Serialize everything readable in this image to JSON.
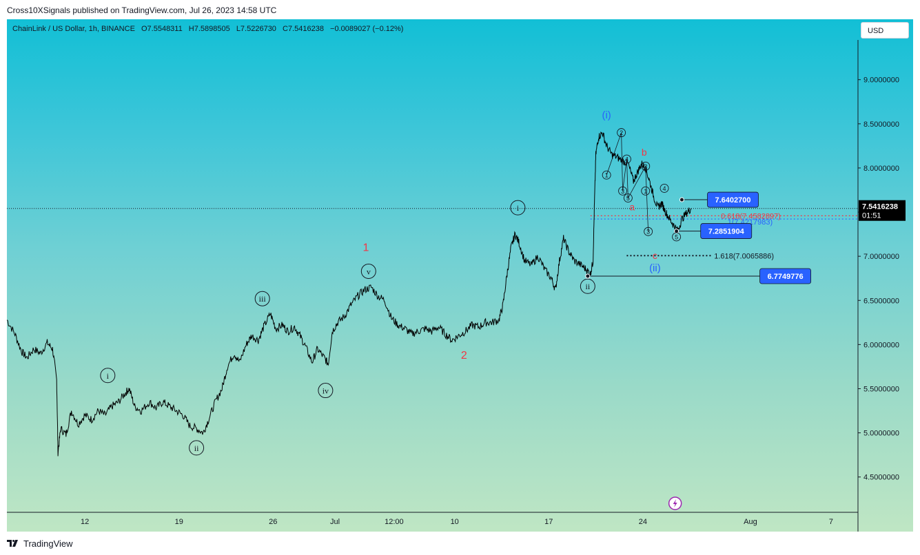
{
  "header": {
    "publisher_line": "Cross10XSignals published on TradingView.com, Jul 26, 2023 14:58 UTC"
  },
  "symbol_info": {
    "name": "ChainLink / US Dollar, 1h, BINANCE",
    "open": "O7.5548311",
    "high": "H7.5898505",
    "low": "L7.5226730",
    "close": "C7.5416238",
    "change": "−0.0089027 (−0.12%)"
  },
  "currency_button": "USD",
  "footer": {
    "brand": "TradingView"
  },
  "colors": {
    "price_line": "#000000",
    "price_label_bg": "#000000",
    "label_box": "#2962ff",
    "wave_red": "#f23645",
    "wave_blue": "#2962ff",
    "fib_red": "#f23645"
  },
  "chart_data": {
    "type": "line",
    "ylim": [
      4.1,
      9.45
    ],
    "y_ticks": [
      {
        "value": 9.0,
        "label": "9.0000000"
      },
      {
        "value": 8.5,
        "label": "8.5000000"
      },
      {
        "value": 8.0,
        "label": "8.0000000"
      },
      {
        "value": 7.5,
        "label": "7.5000000"
      },
      {
        "value": 7.0,
        "label": "7.0000000"
      },
      {
        "value": 6.5,
        "label": "6.5000000"
      },
      {
        "value": 6.0,
        "label": "6.0000000"
      },
      {
        "value": 5.5,
        "label": "5.5000000"
      },
      {
        "value": 5.0,
        "label": "5.0000000"
      },
      {
        "value": 4.5,
        "label": "4.5000000"
      }
    ],
    "x_ticks": [
      {
        "t": 2.0,
        "label": "12"
      },
      {
        "t": 9.0,
        "label": "19"
      },
      {
        "t": 16.0,
        "label": "26"
      },
      {
        "t": 20.6,
        "label": "Jul"
      },
      {
        "t": 25.0,
        "label": "12:00"
      },
      {
        "t": 29.5,
        "label": "10"
      },
      {
        "t": 36.5,
        "label": "17"
      },
      {
        "t": 43.5,
        "label": "24"
      },
      {
        "t": 51.5,
        "label": "Aug"
      },
      {
        "t": 57.5,
        "label": "7"
      }
    ],
    "xlim": [
      -3.8,
      59.5
    ],
    "last_price": {
      "value": 7.5416238,
      "label": "7.5416238",
      "countdown": "01:51"
    },
    "series": [
      {
        "points": [
          [
            -3.8,
            6.28
          ],
          [
            -3.2,
            6.12
          ],
          [
            -2.7,
            5.92
          ],
          [
            -2.3,
            5.85
          ],
          [
            -1.8,
            5.95
          ],
          [
            -1.3,
            5.9
          ],
          [
            -0.8,
            6.02
          ],
          [
            -0.4,
            5.95
          ],
          [
            -0.1,
            5.6
          ],
          [
            0.0,
            4.78
          ],
          [
            0.2,
            5.05
          ],
          [
            0.6,
            4.98
          ],
          [
            1.0,
            5.25
          ],
          [
            1.5,
            5.1
          ],
          [
            2.0,
            5.2
          ],
          [
            2.5,
            5.15
          ],
          [
            3.0,
            5.25
          ],
          [
            3.5,
            5.2
          ],
          [
            4.0,
            5.3
          ],
          [
            4.5,
            5.35
          ],
          [
            5.0,
            5.45
          ],
          [
            5.3,
            5.5
          ],
          [
            5.7,
            5.3
          ],
          [
            6.2,
            5.25
          ],
          [
            6.8,
            5.35
          ],
          [
            7.3,
            5.28
          ],
          [
            7.8,
            5.35
          ],
          [
            8.3,
            5.3
          ],
          [
            8.8,
            5.25
          ],
          [
            9.3,
            5.2
          ],
          [
            9.8,
            5.08
          ],
          [
            10.3,
            5.05
          ],
          [
            10.8,
            5.0
          ],
          [
            11.2,
            5.15
          ],
          [
            11.7,
            5.35
          ],
          [
            12.2,
            5.5
          ],
          [
            12.6,
            5.75
          ],
          [
            13.1,
            5.9
          ],
          [
            13.5,
            5.8
          ],
          [
            14.0,
            6.0
          ],
          [
            14.4,
            6.1
          ],
          [
            14.9,
            6.05
          ],
          [
            15.3,
            6.2
          ],
          [
            15.8,
            6.35
          ],
          [
            16.2,
            6.18
          ],
          [
            16.7,
            6.22
          ],
          [
            17.1,
            6.15
          ],
          [
            17.6,
            6.2
          ],
          [
            18.0,
            6.1
          ],
          [
            18.4,
            5.98
          ],
          [
            18.9,
            5.8
          ],
          [
            19.3,
            5.95
          ],
          [
            19.8,
            5.85
          ],
          [
            20.1,
            5.78
          ],
          [
            20.4,
            6.15
          ],
          [
            20.8,
            6.25
          ],
          [
            21.3,
            6.32
          ],
          [
            21.8,
            6.45
          ],
          [
            22.3,
            6.55
          ],
          [
            22.8,
            6.62
          ],
          [
            23.3,
            6.65
          ],
          [
            23.8,
            6.55
          ],
          [
            24.3,
            6.5
          ],
          [
            24.8,
            6.3
          ],
          [
            25.3,
            6.22
          ],
          [
            25.8,
            6.18
          ],
          [
            26.3,
            6.12
          ],
          [
            26.8,
            6.15
          ],
          [
            27.3,
            6.18
          ],
          [
            27.8,
            6.15
          ],
          [
            28.3,
            6.2
          ],
          [
            28.8,
            6.12
          ],
          [
            29.3,
            6.05
          ],
          [
            29.8,
            6.1
          ],
          [
            30.3,
            6.15
          ],
          [
            30.8,
            6.22
          ],
          [
            31.3,
            6.2
          ],
          [
            31.8,
            6.25
          ],
          [
            32.3,
            6.25
          ],
          [
            32.8,
            6.28
          ],
          [
            33.1,
            6.45
          ],
          [
            33.4,
            6.8
          ],
          [
            33.7,
            7.1
          ],
          [
            34.0,
            7.25
          ],
          [
            34.3,
            7.15
          ],
          [
            34.7,
            6.95
          ],
          [
            35.2,
            6.9
          ],
          [
            35.7,
            7.0
          ],
          [
            36.2,
            6.85
          ],
          [
            36.7,
            6.75
          ],
          [
            37.0,
            6.62
          ],
          [
            37.3,
            6.95
          ],
          [
            37.6,
            7.2
          ],
          [
            38.0,
            7.05
          ],
          [
            38.4,
            6.95
          ],
          [
            38.9,
            6.9
          ],
          [
            39.3,
            6.85
          ],
          [
            39.6,
            6.8
          ],
          [
            39.8,
            6.95
          ],
          [
            39.9,
            7.6
          ],
          [
            40.0,
            8.15
          ],
          [
            40.2,
            8.35
          ],
          [
            40.5,
            8.4
          ],
          [
            40.8,
            8.25
          ],
          [
            41.2,
            8.15
          ],
          [
            41.6,
            8.12
          ],
          [
            42.0,
            8.08
          ],
          [
            42.4,
            8.05
          ],
          [
            42.8,
            7.85
          ],
          [
            43.1,
            7.95
          ],
          [
            43.4,
            8.05
          ],
          [
            43.7,
            8.0
          ],
          [
            44.0,
            7.85
          ],
          [
            44.3,
            7.68
          ],
          [
            44.6,
            7.55
          ],
          [
            44.9,
            7.6
          ],
          [
            45.2,
            7.5
          ],
          [
            45.5,
            7.42
          ],
          [
            45.8,
            7.35
          ],
          [
            46.1,
            7.29
          ],
          [
            46.4,
            7.42
          ],
          [
            46.8,
            7.5
          ],
          [
            47.1,
            7.54
          ]
        ]
      }
    ],
    "price_labels": [
      {
        "value": 7.64027,
        "label": "7.6402700",
        "t": 46.4
      },
      {
        "value": 7.2851904,
        "label": "7.2851904",
        "t": 46.0
      },
      {
        "value": 6.7749776,
        "label": "6.7749776",
        "t": 48.6
      }
    ],
    "fib_levels": [
      {
        "value": 7.4582897,
        "label": "0.618(7.4582897)",
        "color": "#f23645"
      },
      {
        "value": 7.4217983,
        "label": "1(7.4217983)",
        "color": "#2962ff"
      },
      {
        "value": 7.0065886,
        "label": "1.618(7.0065886)",
        "color": "#131722"
      }
    ],
    "wave_labels": [
      {
        "text": "i",
        "t": 3.7,
        "v": 5.65,
        "style": "circle"
      },
      {
        "text": "ii",
        "t": 10.3,
        "v": 4.83,
        "style": "circle"
      },
      {
        "text": "iii",
        "t": 15.2,
        "v": 6.52,
        "style": "circle"
      },
      {
        "text": "iv",
        "t": 19.9,
        "v": 5.48,
        "style": "circle"
      },
      {
        "text": "v",
        "t": 23.1,
        "v": 6.83,
        "style": "circle"
      },
      {
        "text": "i",
        "t": 34.2,
        "v": 7.55,
        "style": "circle"
      },
      {
        "text": "ii",
        "t": 39.4,
        "v": 6.66,
        "style": "circle"
      },
      {
        "text": "1",
        "t": 22.9,
        "v": 7.1,
        "style": "red"
      },
      {
        "text": "2",
        "t": 30.2,
        "v": 5.88,
        "style": "red"
      },
      {
        "text": "(i)",
        "t": 40.8,
        "v": 8.6,
        "style": "blue"
      },
      {
        "text": "(ii)",
        "t": 44.4,
        "v": 6.87,
        "style": "blue"
      },
      {
        "text": "b",
        "t": 43.6,
        "v": 8.17,
        "style": "red-small"
      },
      {
        "text": "a",
        "t": 42.7,
        "v": 7.55,
        "style": "red-small"
      },
      {
        "text": "c",
        "t": 44.4,
        "v": 7.0,
        "style": "red-small"
      },
      {
        "text": "1",
        "t": 40.8,
        "v": 7.92,
        "style": "small-circle"
      },
      {
        "text": "2",
        "t": 41.9,
        "v": 8.4,
        "style": "small-circle"
      },
      {
        "text": "3",
        "t": 42.0,
        "v": 7.74,
        "style": "small-circle"
      },
      {
        "text": "4",
        "t": 42.3,
        "v": 8.1,
        "style": "small-circle"
      },
      {
        "text": "5",
        "t": 42.4,
        "v": 7.66,
        "style": "small-circle"
      },
      {
        "text": "2",
        "t": 43.7,
        "v": 8.02,
        "style": "small-circle"
      },
      {
        "text": "1",
        "t": 43.7,
        "v": 7.74,
        "style": "small-circle"
      },
      {
        "text": "3",
        "t": 43.9,
        "v": 7.28,
        "style": "small-circle"
      },
      {
        "text": "4",
        "t": 45.1,
        "v": 7.77,
        "style": "small-circle"
      },
      {
        "text": "5",
        "t": 46.0,
        "v": 7.22,
        "style": "small-circle"
      }
    ]
  }
}
